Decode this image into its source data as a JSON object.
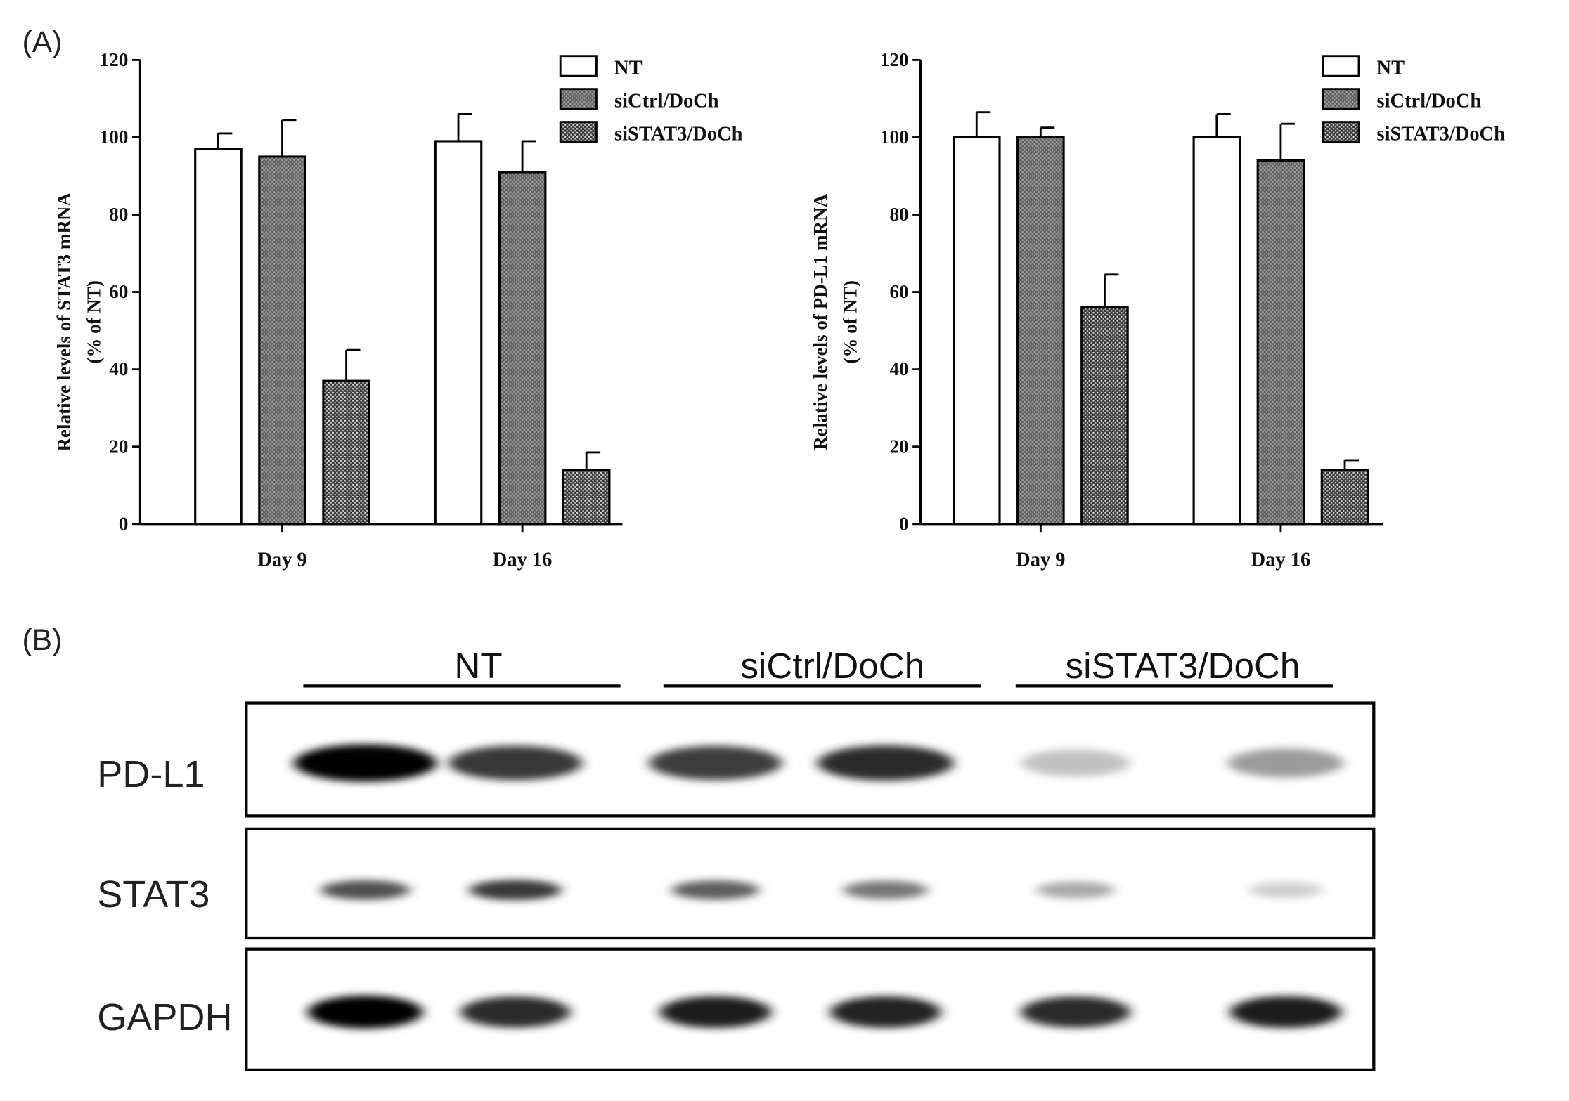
{
  "panel_labels": {
    "a": "(A)",
    "b": "(B)"
  },
  "chart_data": [
    {
      "type": "bar",
      "title": "",
      "xlabel": "",
      "ylabel": "Relative levels of STAT3 mRNA",
      "ylabel2": "(% of NT)",
      "categories": [
        "Day 9",
        "Day 16"
      ],
      "ylim": [
        0,
        120
      ],
      "yticks": [
        0,
        20,
        40,
        60,
        80,
        100,
        120
      ],
      "legend_position": "top-right",
      "series": [
        {
          "name": "NT",
          "values": [
            97,
            99
          ],
          "errors": [
            4,
            7
          ],
          "fill": "white"
        },
        {
          "name": "siCtrl/DoCh",
          "values": [
            95,
            91
          ],
          "errors": [
            9.5,
            8
          ],
          "fill": "crosshatch"
        },
        {
          "name": "siSTAT3/DoCh",
          "values": [
            37,
            14
          ],
          "errors": [
            8,
            4.5
          ],
          "fill": "dense-dots"
        }
      ]
    },
    {
      "type": "bar",
      "title": "",
      "xlabel": "",
      "ylabel": "Relative levels of PD-L1 mRNA",
      "ylabel2": "(% of NT)",
      "categories": [
        "Day 9",
        "Day 16"
      ],
      "ylim": [
        0,
        120
      ],
      "yticks": [
        0,
        20,
        40,
        60,
        80,
        100,
        120
      ],
      "legend_position": "top-right",
      "series": [
        {
          "name": "NT",
          "values": [
            100,
            100
          ],
          "errors": [
            6.5,
            6
          ],
          "fill": "white"
        },
        {
          "name": "siCtrl/DoCh",
          "values": [
            100,
            94
          ],
          "errors": [
            2.5,
            9.5
          ],
          "fill": "crosshatch"
        },
        {
          "name": "siSTAT3/DoCh",
          "values": [
            56,
            14
          ],
          "errors": [
            8.5,
            2.5
          ],
          "fill": "dense-dots"
        }
      ]
    }
  ],
  "blot": {
    "groups": [
      "NT",
      "siCtrl/DoCh",
      "siSTAT3/DoCh"
    ],
    "rows": [
      {
        "label": "PD-L1",
        "intensities": [
          1.0,
          0.8,
          0.78,
          0.85,
          0.25,
          0.4
        ]
      },
      {
        "label": "STAT3",
        "intensities": [
          0.7,
          0.8,
          0.65,
          0.55,
          0.35,
          0.2
        ]
      },
      {
        "label": "GAPDH",
        "intensities": [
          1.0,
          0.85,
          0.9,
          0.88,
          0.85,
          0.9
        ]
      }
    ]
  }
}
